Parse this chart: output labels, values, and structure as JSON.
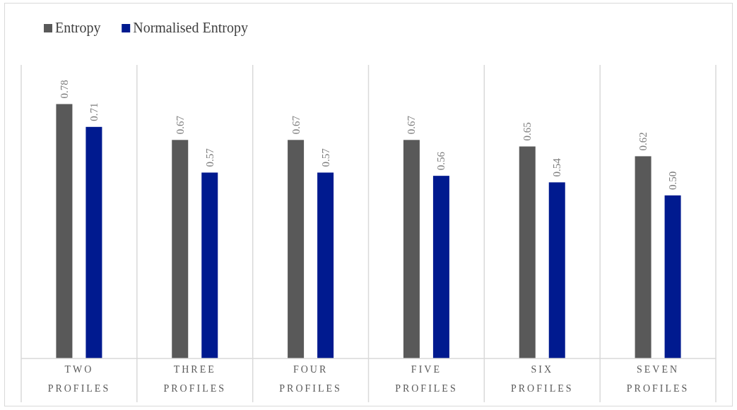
{
  "chart_data": {
    "type": "bar",
    "categories": [
      "TWO PROFILES",
      "THREE PROFILES",
      "FOUR PROFILES",
      "FIVE PROFILES",
      "SIX PROFILES",
      "SEVEN PROFILES"
    ],
    "series": [
      {
        "name": "Entropy",
        "color": "#595959",
        "values": [
          0.78,
          0.67,
          0.67,
          0.67,
          0.65,
          0.62
        ],
        "value_labels": [
          "0.78",
          "0.67",
          "0.67",
          "0.67",
          "0.65",
          "0.62"
        ]
      },
      {
        "name": "Normalised Entropy",
        "color": "#001a8f",
        "values": [
          0.71,
          0.57,
          0.57,
          0.56,
          0.54,
          0.5
        ],
        "value_labels": [
          "0.71",
          "0.57",
          "0.57",
          "0.56",
          "0.54",
          "0.50"
        ]
      }
    ],
    "ylim": [
      0,
      0.9
    ],
    "tick_labels": "x",
    "grid": "x",
    "legend": "top left"
  }
}
